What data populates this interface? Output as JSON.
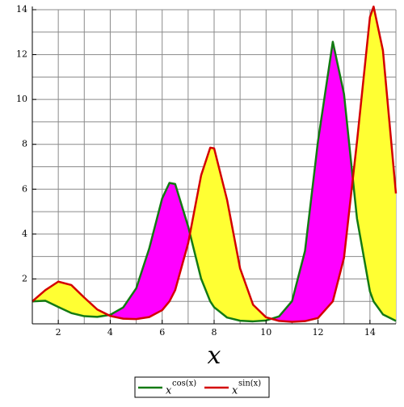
{
  "chart_data": {
    "type": "line",
    "x_label": "x",
    "x": [
      1,
      1.5,
      2,
      2.5,
      3,
      3.5,
      4,
      4.5,
      5,
      5.5,
      6,
      6.28,
      6.5,
      7,
      7.5,
      7.85,
      8,
      8.5,
      9,
      9.5,
      10,
      10.5,
      11,
      11.5,
      12,
      12.57,
      13,
      13.5,
      14,
      14.14,
      14.5,
      15
    ],
    "series": [
      {
        "name": [
          "x",
          "cos(x)"
        ],
        "color": "#137a13",
        "fill": "#ff00ff",
        "values": [
          1,
          1.03,
          0.75,
          0.48,
          0.34,
          0.31,
          0.4,
          0.73,
          1.58,
          3.35,
          5.59,
          6.28,
          6.23,
          4.34,
          2.01,
          1.0,
          0.74,
          0.28,
          0.14,
          0.11,
          0.15,
          0.33,
          1.01,
          3.25,
          8.14,
          12.57,
          10.25,
          4.7,
          1.44,
          1.0,
          0.42,
          0.13
        ]
      },
      {
        "name": [
          "x",
          "sin(x)"
        ],
        "color": "#d40000",
        "fill": "#ffff33",
        "values": [
          1,
          1.5,
          1.88,
          1.73,
          1.17,
          0.64,
          0.35,
          0.23,
          0.21,
          0.3,
          0.61,
          1.0,
          1.5,
          3.59,
          6.62,
          7.85,
          7.82,
          5.52,
          2.47,
          0.85,
          0.29,
          0.13,
          0.09,
          0.12,
          0.26,
          1.0,
          2.94,
          8.11,
          13.67,
          14.14,
          12.18,
          5.81
        ]
      }
    ],
    "xlim": [
      1,
      15
    ],
    "ylim": [
      0,
      14
    ],
    "xticks": [
      2,
      4,
      6,
      8,
      10,
      12,
      14
    ],
    "yticks": [
      2,
      4,
      6,
      8,
      10,
      12,
      14
    ],
    "xgrid": [
      2,
      3,
      4,
      5,
      6,
      7,
      8,
      9,
      10,
      11,
      12,
      13,
      14,
      15
    ],
    "ygrid": [
      1,
      2,
      3,
      4,
      5,
      6,
      7,
      8,
      9,
      10,
      11,
      12,
      13,
      14
    ],
    "grid": true
  }
}
